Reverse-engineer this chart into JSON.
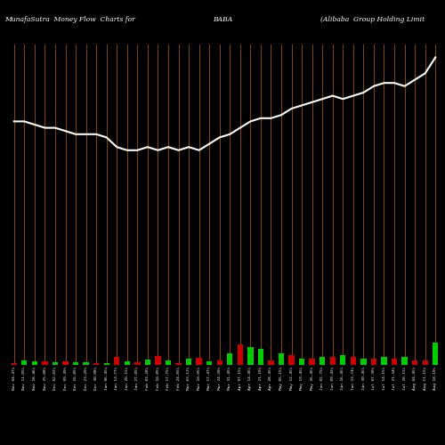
{
  "title_left": "MunafaSutra  Money Flow  Charts for",
  "title_mid": "BABA",
  "title_right": "(Alibaba  Group Holding Limit",
  "bg_color": "#000000",
  "line_color": "#ffffff",
  "bar_green": "#00cc00",
  "bar_red": "#cc0000",
  "grid_color": "#8B4500",
  "categories": [
    "Nov 04,47%",
    "Nov 11,05%",
    "Nov 18,46%",
    "Nov 25,08%",
    "Dec 02,03%",
    "Dec 09,49%",
    "Dec 16,85%",
    "Dec 23,20%",
    "Dec 30,08%",
    "Jan 06,45%",
    "Jan 13,77%",
    "Jan 20,15%",
    "Jan 27,05%",
    "Feb 03,28%",
    "Feb 10,85%",
    "Feb 17,75%",
    "Feb 24,85%",
    "Mar 03,12%",
    "Mar 10,05%",
    "Mar 17,47%",
    "Mar 24,20%",
    "Mar 31,45%",
    "Apr 07,15%",
    "Apr 14,45%",
    "Apr 21,10%",
    "Apr 28,45%",
    "May 05,15%",
    "May 12,45%",
    "May 19,45%",
    "May 26,45%",
    "Jun 02,75%",
    "Jun 09,42%",
    "Jun 16,45%",
    "Jun 23,74%",
    "Jun 30,45%",
    "Jul 07,30%",
    "Jul 14,15%",
    "Jul 21,34%",
    "Jul 28,15%",
    "Aug 04,45%",
    "Aug 11,15%",
    "Aug 18,10%"
  ],
  "bar_heights": [
    0.5,
    1.5,
    1.0,
    1.2,
    0.8,
    1.0,
    0.8,
    0.7,
    0.6,
    0.5,
    2.5,
    1.2,
    0.7,
    1.8,
    2.8,
    1.5,
    0.5,
    2.0,
    2.2,
    1.0,
    1.5,
    3.5,
    6.5,
    5.5,
    5.0,
    1.5,
    3.5,
    3.0,
    2.0,
    2.0,
    2.5,
    2.5,
    3.0,
    2.5,
    2.0,
    2.0,
    2.5,
    2.0,
    2.5,
    1.5,
    1.5,
    7.0
  ],
  "bar_colors": [
    "red",
    "green",
    "green",
    "red",
    "green",
    "red",
    "green",
    "green",
    "red",
    "green",
    "red",
    "green",
    "red",
    "green",
    "red",
    "green",
    "red",
    "green",
    "red",
    "green",
    "red",
    "green",
    "red",
    "green",
    "green",
    "red",
    "green",
    "red",
    "green",
    "red",
    "green",
    "red",
    "green",
    "red",
    "green",
    "red",
    "green",
    "red",
    "green",
    "red",
    "red",
    "green"
  ],
  "line_values": [
    76,
    76,
    75,
    74,
    74,
    73,
    72,
    72,
    72,
    71,
    68,
    67,
    67,
    68,
    67,
    68,
    67,
    68,
    67,
    69,
    71,
    72,
    74,
    76,
    77,
    77,
    78,
    80,
    81,
    82,
    83,
    84,
    83,
    84,
    85,
    87,
    88,
    88,
    87,
    89,
    91,
    96
  ],
  "ylim_max": 100,
  "bar_scale": 9.0
}
